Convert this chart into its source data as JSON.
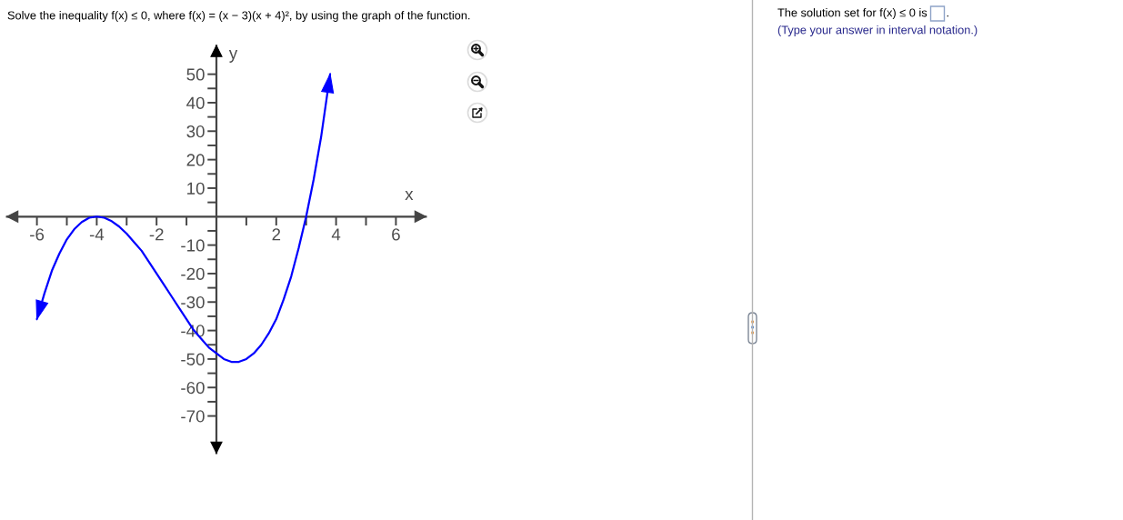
{
  "chart_data": {
    "type": "line",
    "title": "Solve the inequality f(x) ≤ 0, where f(x) = (x − 3)(x + 4)², by using the graph of the function.",
    "xlabel": "x",
    "ylabel": "y",
    "annotations": [
      "The solution set for f(x) ≤ 0 is",
      ".",
      "(Type your answer in interval notation.)"
    ],
    "x": [
      -6,
      -5.75,
      -5.5,
      -5.25,
      -5,
      -4.75,
      -4.5,
      -4.25,
      -4,
      -3.75,
      -3.5,
      -3.25,
      -3,
      -2.75,
      -2.5,
      -2.25,
      -2,
      -1.75,
      -1.5,
      -1.25,
      -1,
      -0.75,
      -0.5,
      -0.25,
      0,
      0.25,
      0.5,
      0.75,
      1,
      1.25,
      1.5,
      1.75,
      2,
      2.25,
      2.5,
      2.75,
      3,
      3.25,
      3.5,
      3.8
    ],
    "series": [
      {
        "color": "#0000ff",
        "values": [
          -36,
          -27,
          -19,
          -13,
          -8,
          -4.4,
          -1.9,
          -0.4,
          0,
          -0.4,
          -1.6,
          -3.5,
          -6,
          -9,
          -12,
          -16,
          -20,
          -24,
          -28,
          -32,
          -36,
          -40,
          -43,
          -46,
          -48,
          -50,
          -51,
          -51,
          -50,
          -48,
          -45,
          -41,
          -36,
          -29,
          -21,
          -11,
          0,
          13,
          28,
          50
        ]
      }
    ],
    "xlim": [
      -7,
      7
    ],
    "ylim": [
      -83,
      60
    ],
    "xticks": [
      -6,
      {
        "value": -5,
        "label": null
      },
      -4,
      {
        "value": -3,
        "label": null
      },
      -2,
      {
        "value": -1,
        "label": null
      },
      {
        "value": 1,
        "label": null
      },
      2,
      {
        "value": 3,
        "label": null
      },
      4,
      {
        "value": 5,
        "label": null
      },
      6
    ],
    "yticks": [
      -70,
      {
        "value": -65,
        "label": null
      },
      -60,
      {
        "value": -55,
        "label": null
      },
      -50,
      {
        "value": -45,
        "label": null
      },
      -40,
      {
        "value": -35,
        "label": null
      },
      -30,
      {
        "value": -25,
        "label": null
      },
      -20,
      {
        "value": -15,
        "label": null
      },
      -10,
      {
        "value": -5,
        "label": null
      },
      {
        "value": 5,
        "label": null
      },
      10,
      {
        "value": 15,
        "label": null
      },
      20,
      {
        "value": 25,
        "label": null
      },
      30,
      {
        "value": 35,
        "label": null
      },
      40,
      {
        "value": 45,
        "label": null
      },
      50
    ],
    "marker": "none",
    "line_style": "solid"
  }
}
